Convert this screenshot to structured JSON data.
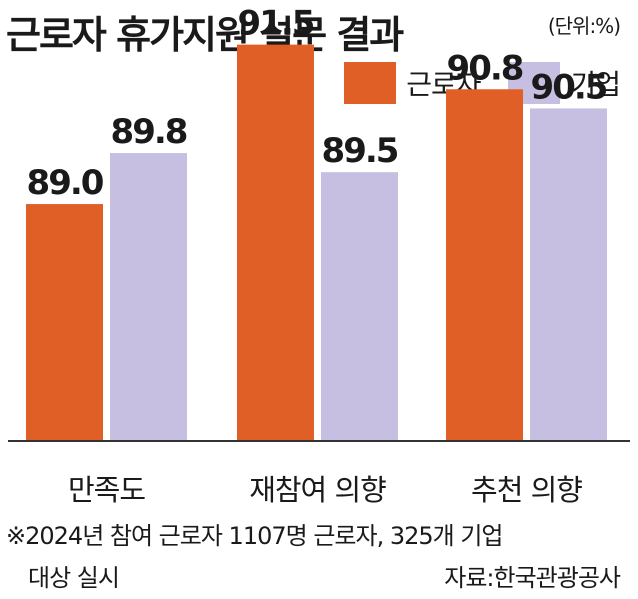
{
  "header": {
    "title": "근로자 휴가지원 설문 결과",
    "unit": "(단위:%)"
  },
  "chart_data": {
    "type": "bar",
    "title": "근로자 휴가지원 설문 결과",
    "unit": "(단위:%)",
    "categories": [
      "만족도",
      "재참여 의향",
      "추천 의향"
    ],
    "series": [
      {
        "name": "근로자",
        "color": "#e05f26",
        "values": [
          89.0,
          91.5,
          90.8
        ],
        "labels": [
          "89.0",
          "91.5",
          "90.8"
        ]
      },
      {
        "name": "기업",
        "color": "#c7bfe2",
        "values": [
          89.8,
          89.5,
          90.5
        ],
        "labels": [
          "89.8",
          "89.5",
          "90.5"
        ]
      }
    ],
    "ylim": [
      85.3,
      92.2
    ],
    "grid": false,
    "legend_position": "top-right"
  },
  "footer": {
    "note_line1": "※2024년 참여 근로자 1107명 근로자, 325개 기업",
    "note_line2": "대상 실시",
    "source": "자료:한국관광공사"
  }
}
